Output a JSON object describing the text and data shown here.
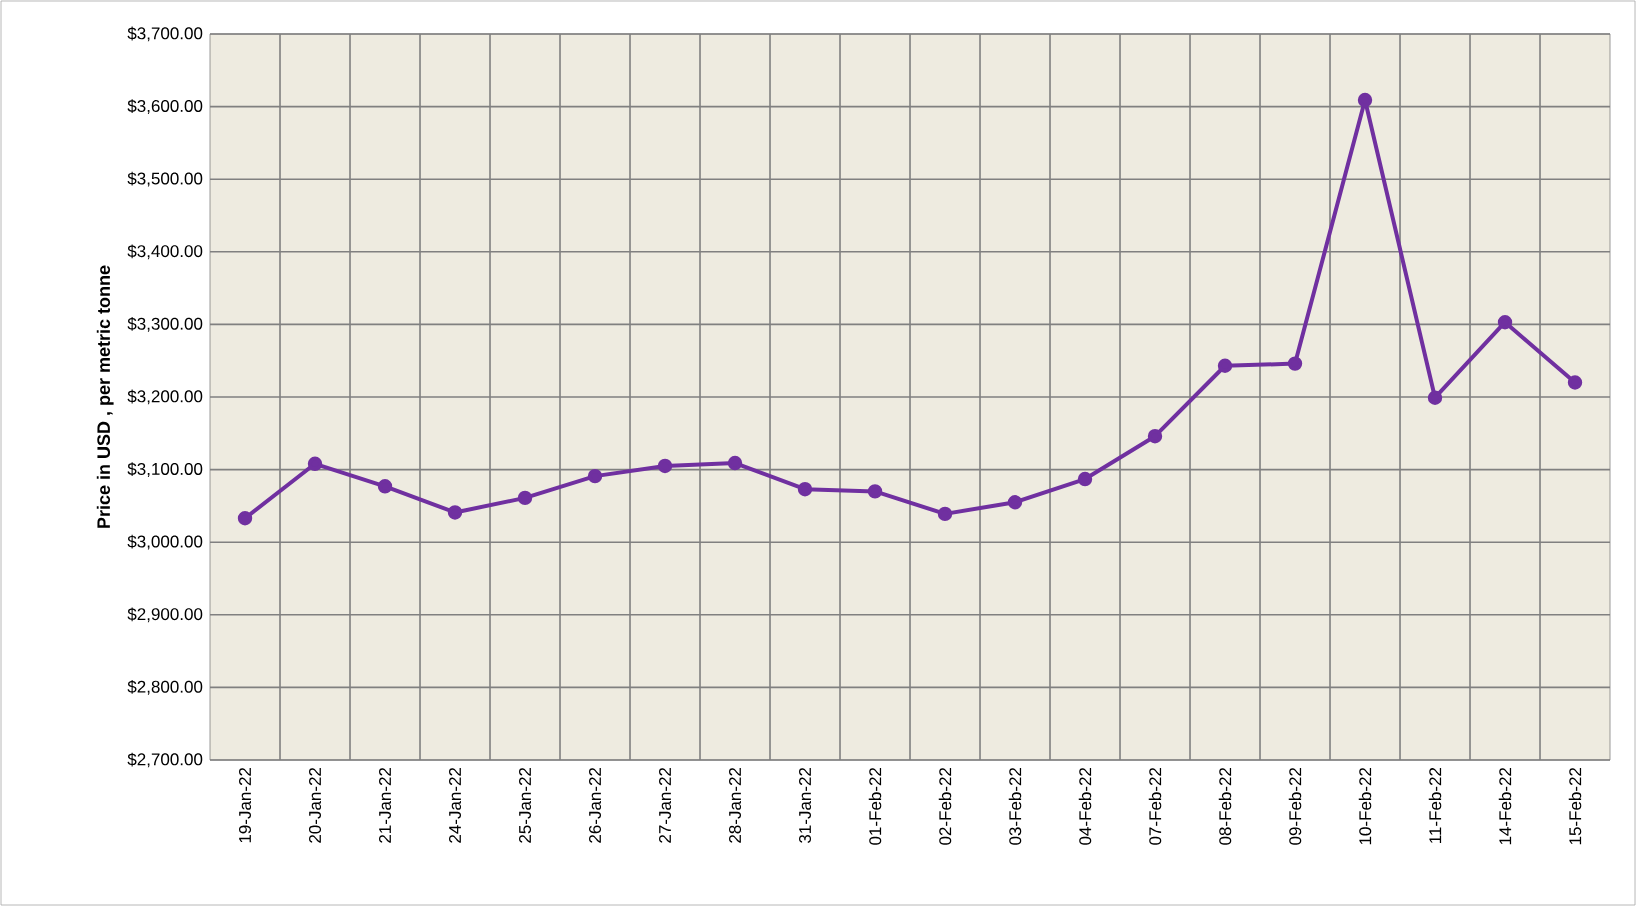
{
  "chart_data": {
    "type": "line",
    "ylabel": "Price in USD , per metric tonne",
    "categories": [
      "19-Jan-22",
      "20-Jan-22",
      "21-Jan-22",
      "24-Jan-22",
      "25-Jan-22",
      "26-Jan-22",
      "27-Jan-22",
      "28-Jan-22",
      "31-Jan-22",
      "01-Feb-22",
      "02-Feb-22",
      "03-Feb-22",
      "04-Feb-22",
      "07-Feb-22",
      "08-Feb-22",
      "09-Feb-22",
      "10-Feb-22",
      "11-Feb-22",
      "14-Feb-22",
      "15-Feb-22"
    ],
    "series": [
      {
        "color": "#7030a0",
        "values": [
          3033,
          3108,
          3077,
          3041,
          3061,
          3091,
          3105,
          3109,
          3073,
          3070,
          3039,
          3055,
          3087,
          3146,
          3243,
          3246,
          3609,
          3199,
          3303,
          3220
        ]
      }
    ],
    "ylim": [
      2700,
      3700
    ],
    "yticks": [
      {
        "value": 2700,
        "label": "$2,700.00"
      },
      {
        "value": 2800,
        "label": "$2,800.00"
      },
      {
        "value": 2900,
        "label": "$2,900.00"
      },
      {
        "value": 3000,
        "label": "$3,000.00"
      },
      {
        "value": 3100,
        "label": "$3,100.00"
      },
      {
        "value": 3200,
        "label": "$3,200.00"
      },
      {
        "value": 3300,
        "label": "$3,300.00"
      },
      {
        "value": 3400,
        "label": "$3,400.00"
      },
      {
        "value": 3500,
        "label": "$3,500.00"
      },
      {
        "value": 3600,
        "label": "$3,600.00"
      },
      {
        "value": 3700,
        "label": "$3,700.00"
      }
    ],
    "grid": true,
    "marker": "circle",
    "line_style": "solid"
  }
}
